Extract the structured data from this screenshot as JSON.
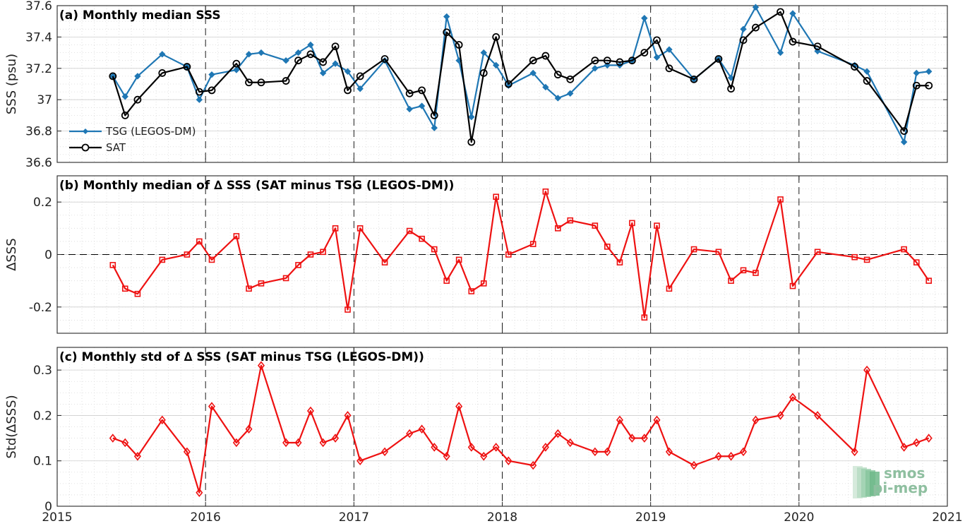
{
  "logo": {
    "line1": "smos",
    "line2": "pi-mep"
  },
  "chart_data": [
    {
      "type": "line",
      "title": "(a) Monthly median SSS",
      "xlabel": "",
      "ylabel": "SSS (psu)",
      "xlim": [
        2015,
        2021
      ],
      "ylim": [
        36.6,
        37.6
      ],
      "yticks": [
        36.6,
        36.8,
        37,
        37.2,
        37.4,
        37.6
      ],
      "ytick_labels": [
        "36.6",
        "36.8",
        "37",
        "37.2",
        "37.4",
        "37.6"
      ],
      "legend": "left",
      "grid": true,
      "series": [
        {
          "name": "TSG (LEGOS-DM)",
          "color": "#1f77b4",
          "marker": "filled-diamond",
          "x": [
            2015.375,
            2015.458,
            2015.542,
            2015.708,
            2015.875,
            2015.958,
            2016.042,
            2016.208,
            2016.292,
            2016.375,
            2016.542,
            2016.625,
            2016.708,
            2016.792,
            2016.875,
            2016.958,
            2017.042,
            2017.208,
            2017.375,
            2017.458,
            2017.542,
            2017.625,
            2017.708,
            2017.792,
            2017.875,
            2017.958,
            2018.042,
            2018.208,
            2018.292,
            2018.375,
            2018.458,
            2018.625,
            2018.708,
            2018.792,
            2018.875,
            2018.958,
            2019.042,
            2019.125,
            2019.292,
            2019.458,
            2019.542,
            2019.625,
            2019.708,
            2019.875,
            2019.958,
            2020.125,
            2020.375,
            2020.458,
            2020.708,
            2020.792,
            2020.875
          ],
          "y": [
            37.15,
            37.02,
            37.15,
            37.29,
            37.21,
            37.0,
            37.16,
            37.19,
            37.29,
            37.3,
            37.25,
            37.3,
            37.35,
            37.17,
            37.23,
            37.18,
            37.07,
            37.25,
            36.94,
            36.96,
            36.82,
            37.53,
            37.25,
            36.89,
            37.3,
            37.22,
            37.09,
            37.17,
            37.08,
            37.01,
            37.04,
            37.2,
            37.22,
            37.22,
            37.25,
            37.52,
            37.27,
            37.32,
            37.13,
            37.26,
            37.14,
            37.45,
            37.59,
            37.3,
            37.55,
            37.31,
            37.22,
            37.18,
            36.73,
            37.17,
            37.18
          ]
        },
        {
          "name": "SAT",
          "color": "#000000",
          "marker": "open-circle",
          "x": [
            2015.375,
            2015.458,
            2015.542,
            2015.708,
            2015.875,
            2015.958,
            2016.042,
            2016.208,
            2016.292,
            2016.375,
            2016.542,
            2016.625,
            2016.708,
            2016.792,
            2016.875,
            2016.958,
            2017.042,
            2017.208,
            2017.375,
            2017.458,
            2017.542,
            2017.625,
            2017.708,
            2017.792,
            2017.875,
            2017.958,
            2018.042,
            2018.208,
            2018.292,
            2018.375,
            2018.458,
            2018.625,
            2018.708,
            2018.792,
            2018.875,
            2018.958,
            2019.042,
            2019.125,
            2019.292,
            2019.458,
            2019.542,
            2019.625,
            2019.708,
            2019.875,
            2019.958,
            2020.125,
            2020.375,
            2020.458,
            2020.708,
            2020.792,
            2020.875
          ],
          "y": [
            37.15,
            36.9,
            37.0,
            37.17,
            37.21,
            37.05,
            37.06,
            37.23,
            37.11,
            37.11,
            37.12,
            37.25,
            37.29,
            37.24,
            37.34,
            37.06,
            37.15,
            37.26,
            37.04,
            37.06,
            36.9,
            37.43,
            37.35,
            36.73,
            37.17,
            37.4,
            37.1,
            37.25,
            37.28,
            37.16,
            37.13,
            37.25,
            37.25,
            37.24,
            37.25,
            37.3,
            37.38,
            37.2,
            37.13,
            37.26,
            37.07,
            37.38,
            37.46,
            37.56,
            37.37,
            37.34,
            37.21,
            37.12,
            36.8,
            37.09,
            37.09
          ]
        }
      ]
    },
    {
      "type": "line",
      "title": "(b) Monthly median of ∆ SSS (SAT minus TSG (LEGOS-DM))",
      "xlabel": "",
      "ylabel": "∆SSS",
      "xlim": [
        2015,
        2021
      ],
      "ylim": [
        -0.3,
        0.3
      ],
      "yticks": [
        -0.2,
        0,
        0.2
      ],
      "ytick_labels": [
        "-0.2",
        "0",
        "0.2"
      ],
      "zero_line": true,
      "grid": true,
      "series": [
        {
          "name": "",
          "color": "#ee1111",
          "marker": "open-square",
          "x": [
            2015.375,
            2015.458,
            2015.542,
            2015.708,
            2015.875,
            2015.958,
            2016.042,
            2016.208,
            2016.292,
            2016.375,
            2016.542,
            2016.625,
            2016.708,
            2016.792,
            2016.875,
            2016.958,
            2017.042,
            2017.208,
            2017.375,
            2017.458,
            2017.542,
            2017.625,
            2017.708,
            2017.792,
            2017.875,
            2017.958,
            2018.042,
            2018.208,
            2018.292,
            2018.375,
            2018.458,
            2018.625,
            2018.708,
            2018.792,
            2018.875,
            2018.958,
            2019.042,
            2019.125,
            2019.292,
            2019.458,
            2019.542,
            2019.625,
            2019.708,
            2019.875,
            2019.958,
            2020.125,
            2020.375,
            2020.458,
            2020.708,
            2020.792,
            2020.875
          ],
          "y": [
            -0.04,
            -0.13,
            -0.15,
            -0.02,
            0.0,
            0.05,
            -0.02,
            0.07,
            -0.13,
            -0.11,
            -0.09,
            -0.04,
            0.0,
            0.01,
            0.1,
            -0.21,
            0.1,
            -0.03,
            0.09,
            0.06,
            0.02,
            -0.1,
            -0.02,
            -0.14,
            -0.11,
            0.22,
            0.0,
            0.04,
            0.24,
            0.1,
            0.13,
            0.11,
            0.03,
            -0.03,
            0.12,
            -0.24,
            0.11,
            -0.13,
            0.02,
            0.01,
            -0.1,
            -0.06,
            -0.07,
            0.21,
            -0.12,
            0.01,
            -0.01,
            -0.02,
            0.02,
            -0.03,
            -0.1
          ]
        }
      ]
    },
    {
      "type": "line",
      "title": "(c) Monthly std of ∆ SSS (SAT minus TSG (LEGOS-DM))",
      "xlabel": "",
      "ylabel": "Std(∆SSS)",
      "xlim": [
        2015,
        2021
      ],
      "ylim": [
        0,
        0.35
      ],
      "yticks": [
        0,
        0.1,
        0.2,
        0.3
      ],
      "ytick_labels": [
        "0",
        "0.1",
        "0.2",
        "0.3"
      ],
      "xticks": [
        2015,
        2016,
        2017,
        2018,
        2019,
        2020,
        2021
      ],
      "xtick_labels": [
        "2015",
        "2016",
        "2017",
        "2018",
        "2019",
        "2020",
        "2021"
      ],
      "grid": true,
      "series": [
        {
          "name": "",
          "color": "#ee1111",
          "marker": "open-diamond",
          "x": [
            2015.375,
            2015.458,
            2015.542,
            2015.708,
            2015.875,
            2015.958,
            2016.042,
            2016.208,
            2016.292,
            2016.375,
            2016.542,
            2016.625,
            2016.708,
            2016.792,
            2016.875,
            2016.958,
            2017.042,
            2017.208,
            2017.375,
            2017.458,
            2017.542,
            2017.625,
            2017.708,
            2017.792,
            2017.875,
            2017.958,
            2018.042,
            2018.208,
            2018.292,
            2018.375,
            2018.458,
            2018.625,
            2018.708,
            2018.792,
            2018.875,
            2018.958,
            2019.042,
            2019.125,
            2019.292,
            2019.458,
            2019.542,
            2019.625,
            2019.708,
            2019.875,
            2019.958,
            2020.125,
            2020.375,
            2020.458,
            2020.708,
            2020.792,
            2020.875
          ],
          "y": [
            0.15,
            0.14,
            0.11,
            0.19,
            0.12,
            0.03,
            0.22,
            0.14,
            0.17,
            0.31,
            0.14,
            0.14,
            0.21,
            0.14,
            0.15,
            0.2,
            0.1,
            0.12,
            0.16,
            0.17,
            0.13,
            0.11,
            0.22,
            0.13,
            0.11,
            0.13,
            0.1,
            0.09,
            0.13,
            0.16,
            0.14,
            0.12,
            0.12,
            0.19,
            0.15,
            0.15,
            0.19,
            0.12,
            0.09,
            0.11,
            0.11,
            0.12,
            0.19,
            0.2,
            0.24,
            0.2,
            0.12,
            0.3,
            0.13,
            0.14,
            0.15
          ]
        }
      ]
    }
  ]
}
